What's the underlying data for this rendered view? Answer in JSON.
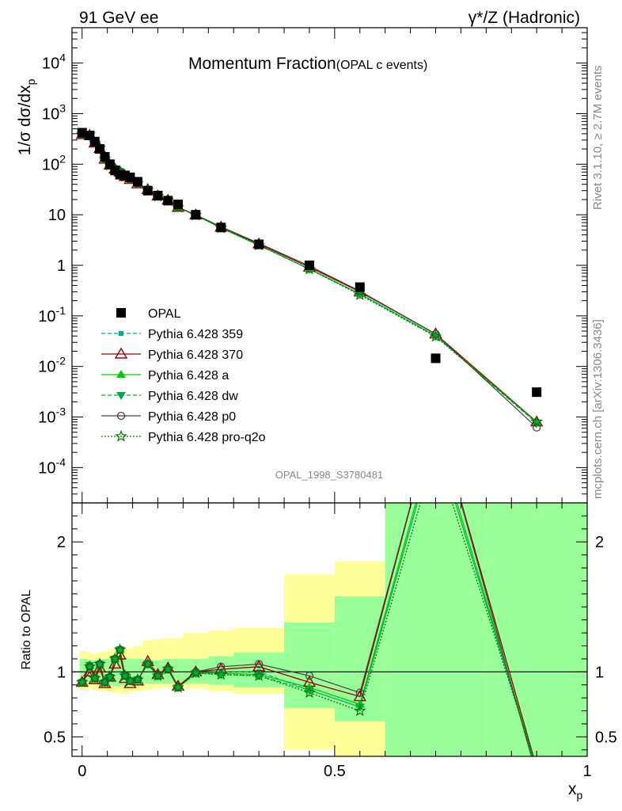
{
  "header": {
    "left_label": "91 GeV ee",
    "right_label": "γ*/Z (Hadronic)"
  },
  "side_labels": {
    "rivet": "Rivet 3.1.10, ≥ 2.7M events",
    "mcplots": "mcplots.cern.ch [arXiv:1306.3436]"
  },
  "watermark": "OPAL_1998_S3780481",
  "chart_data": [
    {
      "type": "line",
      "title": "Momentum Fraction",
      "subtitle": "(OPAL c events)",
      "ylabel": "1/σ dσ/dx_p",
      "xlabel": "",
      "log_y": true,
      "xlim": [
        -0.02,
        1.0
      ],
      "ylim": [
        2e-05,
        50000
      ],
      "y_tick_labels": [
        "10^-4",
        "10^-3",
        "10^-2",
        "10^-1",
        "1",
        "10",
        "10^2",
        "10^3",
        "10^4"
      ],
      "legend_position": "left",
      "legend": [
        "OPAL",
        "Pythia 6.428 359",
        "Pythia 6.428 370",
        "Pythia 6.428 a",
        "Pythia 6.428 dw",
        "Pythia 6.428 p0",
        "Pythia 6.428 pro-q2o"
      ],
      "x": [
        0.0,
        0.015,
        0.025,
        0.035,
        0.045,
        0.055,
        0.065,
        0.075,
        0.085,
        0.095,
        0.11,
        0.13,
        0.15,
        0.17,
        0.19,
        0.225,
        0.275,
        0.35,
        0.45,
        0.55,
        0.7,
        0.9
      ],
      "data": {
        "name": "OPAL",
        "values": [
          420,
          370,
          280,
          200,
          140,
          100,
          75,
          62,
          60,
          55,
          45,
          30,
          24,
          19,
          16,
          10,
          5.6,
          2.6,
          1.0,
          0.37,
          0.0145,
          0.0031
        ]
      },
      "series": [
        {
          "name": "Pythia 6.428 359",
          "color": "#00aa88",
          "values": [
            385,
            390,
            265,
            212,
            128,
            95,
            82,
            72,
            58,
            51,
            42,
            31,
            23,
            19.3,
            14,
            9.8,
            5.5,
            2.5,
            0.84,
            0.27,
            0.04,
            0.00075
          ]
        },
        {
          "name": "Pythia 6.428 370",
          "color": "#990000",
          "values": [
            385,
            370,
            262,
            205,
            126,
            96,
            80,
            70,
            57,
            50,
            41,
            31.5,
            23.5,
            19.5,
            14,
            9.9,
            5.7,
            2.65,
            0.92,
            0.3,
            0.044,
            0.0008
          ]
        },
        {
          "name": "Pythia 6.428 a",
          "color": "#00cc00",
          "values": [
            385,
            388,
            266,
            210,
            128,
            96,
            82,
            72,
            58,
            51,
            42,
            31,
            23,
            19.3,
            14,
            9.8,
            5.5,
            2.5,
            0.85,
            0.275,
            0.041,
            0.00078
          ]
        },
        {
          "name": "Pythia 6.428 dw",
          "color": "#00aa44",
          "values": [
            385,
            388,
            265,
            212,
            128,
            95,
            82,
            72,
            58,
            51,
            42,
            31,
            23,
            19.3,
            14,
            9.8,
            5.5,
            2.52,
            0.84,
            0.27,
            0.04,
            0.00076
          ]
        },
        {
          "name": "Pythia 6.428 p0",
          "color": "#444444",
          "values": [
            385,
            385,
            265,
            212,
            128,
            96,
            82,
            72,
            58,
            51,
            42,
            31.5,
            23.5,
            19.5,
            14,
            10,
            5.8,
            2.75,
            0.97,
            0.31,
            0.044,
            0.00062
          ]
        },
        {
          "name": "Pythia 6.428 pro-q2o",
          "color": "#007700",
          "values": [
            385,
            385,
            265,
            212,
            128,
            95,
            82,
            72,
            58,
            51,
            42,
            31,
            23,
            19.3,
            14,
            9.8,
            5.5,
            2.5,
            0.84,
            0.26,
            0.039,
            0.0008
          ]
        }
      ]
    },
    {
      "type": "line",
      "ylabel": "Ratio to OPAL",
      "xlabel": "x_p",
      "xlim": [
        -0.02,
        1.0
      ],
      "ylim": [
        0.35,
        2.3
      ],
      "y_ticks": [
        0.5,
        1,
        2
      ],
      "y_tick_labels": [
        "0.5",
        "1",
        "2"
      ],
      "x_ticks": [
        0,
        0.5,
        1
      ],
      "x_tick_labels": [
        "0",
        "0.5",
        "1"
      ],
      "x_edges": [
        -0.005,
        0.01,
        0.02,
        0.03,
        0.04,
        0.05,
        0.06,
        0.07,
        0.08,
        0.09,
        0.1,
        0.12,
        0.14,
        0.16,
        0.18,
        0.2,
        0.25,
        0.3,
        0.4,
        0.5,
        0.6,
        0.8,
        1.0
      ],
      "band_outer": [
        [
          0.86,
          1.16
        ],
        [
          0.87,
          1.15
        ],
        [
          0.86,
          1.14
        ],
        [
          0.85,
          1.15
        ],
        [
          0.85,
          1.16
        ],
        [
          0.84,
          1.17
        ],
        [
          0.84,
          1.18
        ],
        [
          0.83,
          1.19
        ],
        [
          0.83,
          1.19
        ],
        [
          0.84,
          1.18
        ],
        [
          0.85,
          1.2
        ],
        [
          0.86,
          1.24
        ],
        [
          0.87,
          1.25
        ],
        [
          0.88,
          1.26
        ],
        [
          0.88,
          1.26
        ],
        [
          0.87,
          1.3
        ],
        [
          0.85,
          1.32
        ],
        [
          0.83,
          1.34
        ],
        [
          0.4,
          1.75
        ],
        [
          0.3,
          1.85
        ],
        [
          0,
          2.5
        ],
        [
          0,
          2.5
        ]
      ],
      "band_inner": [
        [
          0.9,
          1.1
        ],
        [
          0.91,
          1.09
        ],
        [
          0.91,
          1.09
        ],
        [
          0.9,
          1.1
        ],
        [
          0.9,
          1.1
        ],
        [
          0.9,
          1.1
        ],
        [
          0.89,
          1.11
        ],
        [
          0.89,
          1.11
        ],
        [
          0.89,
          1.11
        ],
        [
          0.9,
          1.1
        ],
        [
          0.9,
          1.1
        ],
        [
          0.91,
          1.09
        ],
        [
          0.91,
          1.09
        ],
        [
          0.91,
          1.1
        ],
        [
          0.91,
          1.1
        ],
        [
          0.91,
          1.1
        ],
        [
          0.9,
          1.12
        ],
        [
          0.88,
          1.15
        ],
        [
          0.72,
          1.38
        ],
        [
          0.62,
          1.58
        ],
        [
          0,
          2.5
        ],
        [
          0,
          2.5
        ]
      ],
      "series": [
        {
          "name": "Pythia 6.428 359",
          "values": [
            0.92,
            1.06,
            0.95,
            1.06,
            0.92,
            0.96,
            1.1,
            1.17,
            0.97,
            0.93,
            0.94,
            1.06,
            0.97,
            1.02,
            0.88,
            0.99,
            1.0,
            1.0,
            0.86,
            0.73,
            2.8,
            0.24
          ]
        },
        {
          "name": "Pythia 6.428 370",
          "values": [
            0.92,
            1.0,
            0.94,
            1.03,
            0.91,
            0.96,
            1.06,
            1.13,
            0.95,
            0.91,
            0.93,
            1.08,
            0.98,
            1.03,
            0.89,
            1.0,
            1.02,
            1.04,
            0.92,
            0.81,
            3.0,
            0.26
          ]
        },
        {
          "name": "Pythia 6.428 a",
          "values": [
            0.92,
            1.05,
            0.95,
            1.06,
            0.92,
            0.96,
            1.1,
            1.17,
            0.97,
            0.93,
            0.94,
            1.06,
            0.97,
            1.02,
            0.88,
            0.99,
            0.99,
            0.98,
            0.88,
            0.75,
            2.85,
            0.25
          ]
        },
        {
          "name": "Pythia 6.428 dw",
          "values": [
            0.92,
            1.05,
            0.95,
            1.06,
            0.92,
            0.96,
            1.1,
            1.17,
            0.97,
            0.93,
            0.94,
            1.06,
            0.97,
            1.02,
            0.88,
            0.99,
            0.98,
            0.97,
            0.86,
            0.73,
            2.8,
            0.245
          ]
        },
        {
          "name": "Pythia 6.428 p0",
          "values": [
            0.92,
            1.04,
            0.95,
            1.06,
            0.92,
            0.96,
            1.1,
            1.17,
            0.97,
            0.93,
            0.94,
            1.06,
            0.97,
            1.02,
            0.88,
            1.0,
            1.04,
            1.06,
            0.97,
            0.84,
            3.0,
            0.2
          ]
        },
        {
          "name": "Pythia 6.428 pro-q2o",
          "values": [
            0.92,
            1.04,
            0.95,
            1.06,
            0.92,
            0.96,
            1.1,
            1.17,
            0.97,
            0.93,
            0.94,
            1.06,
            0.97,
            1.02,
            0.88,
            0.99,
            0.98,
            0.97,
            0.84,
            0.7,
            2.7,
            0.26
          ]
        }
      ]
    }
  ]
}
